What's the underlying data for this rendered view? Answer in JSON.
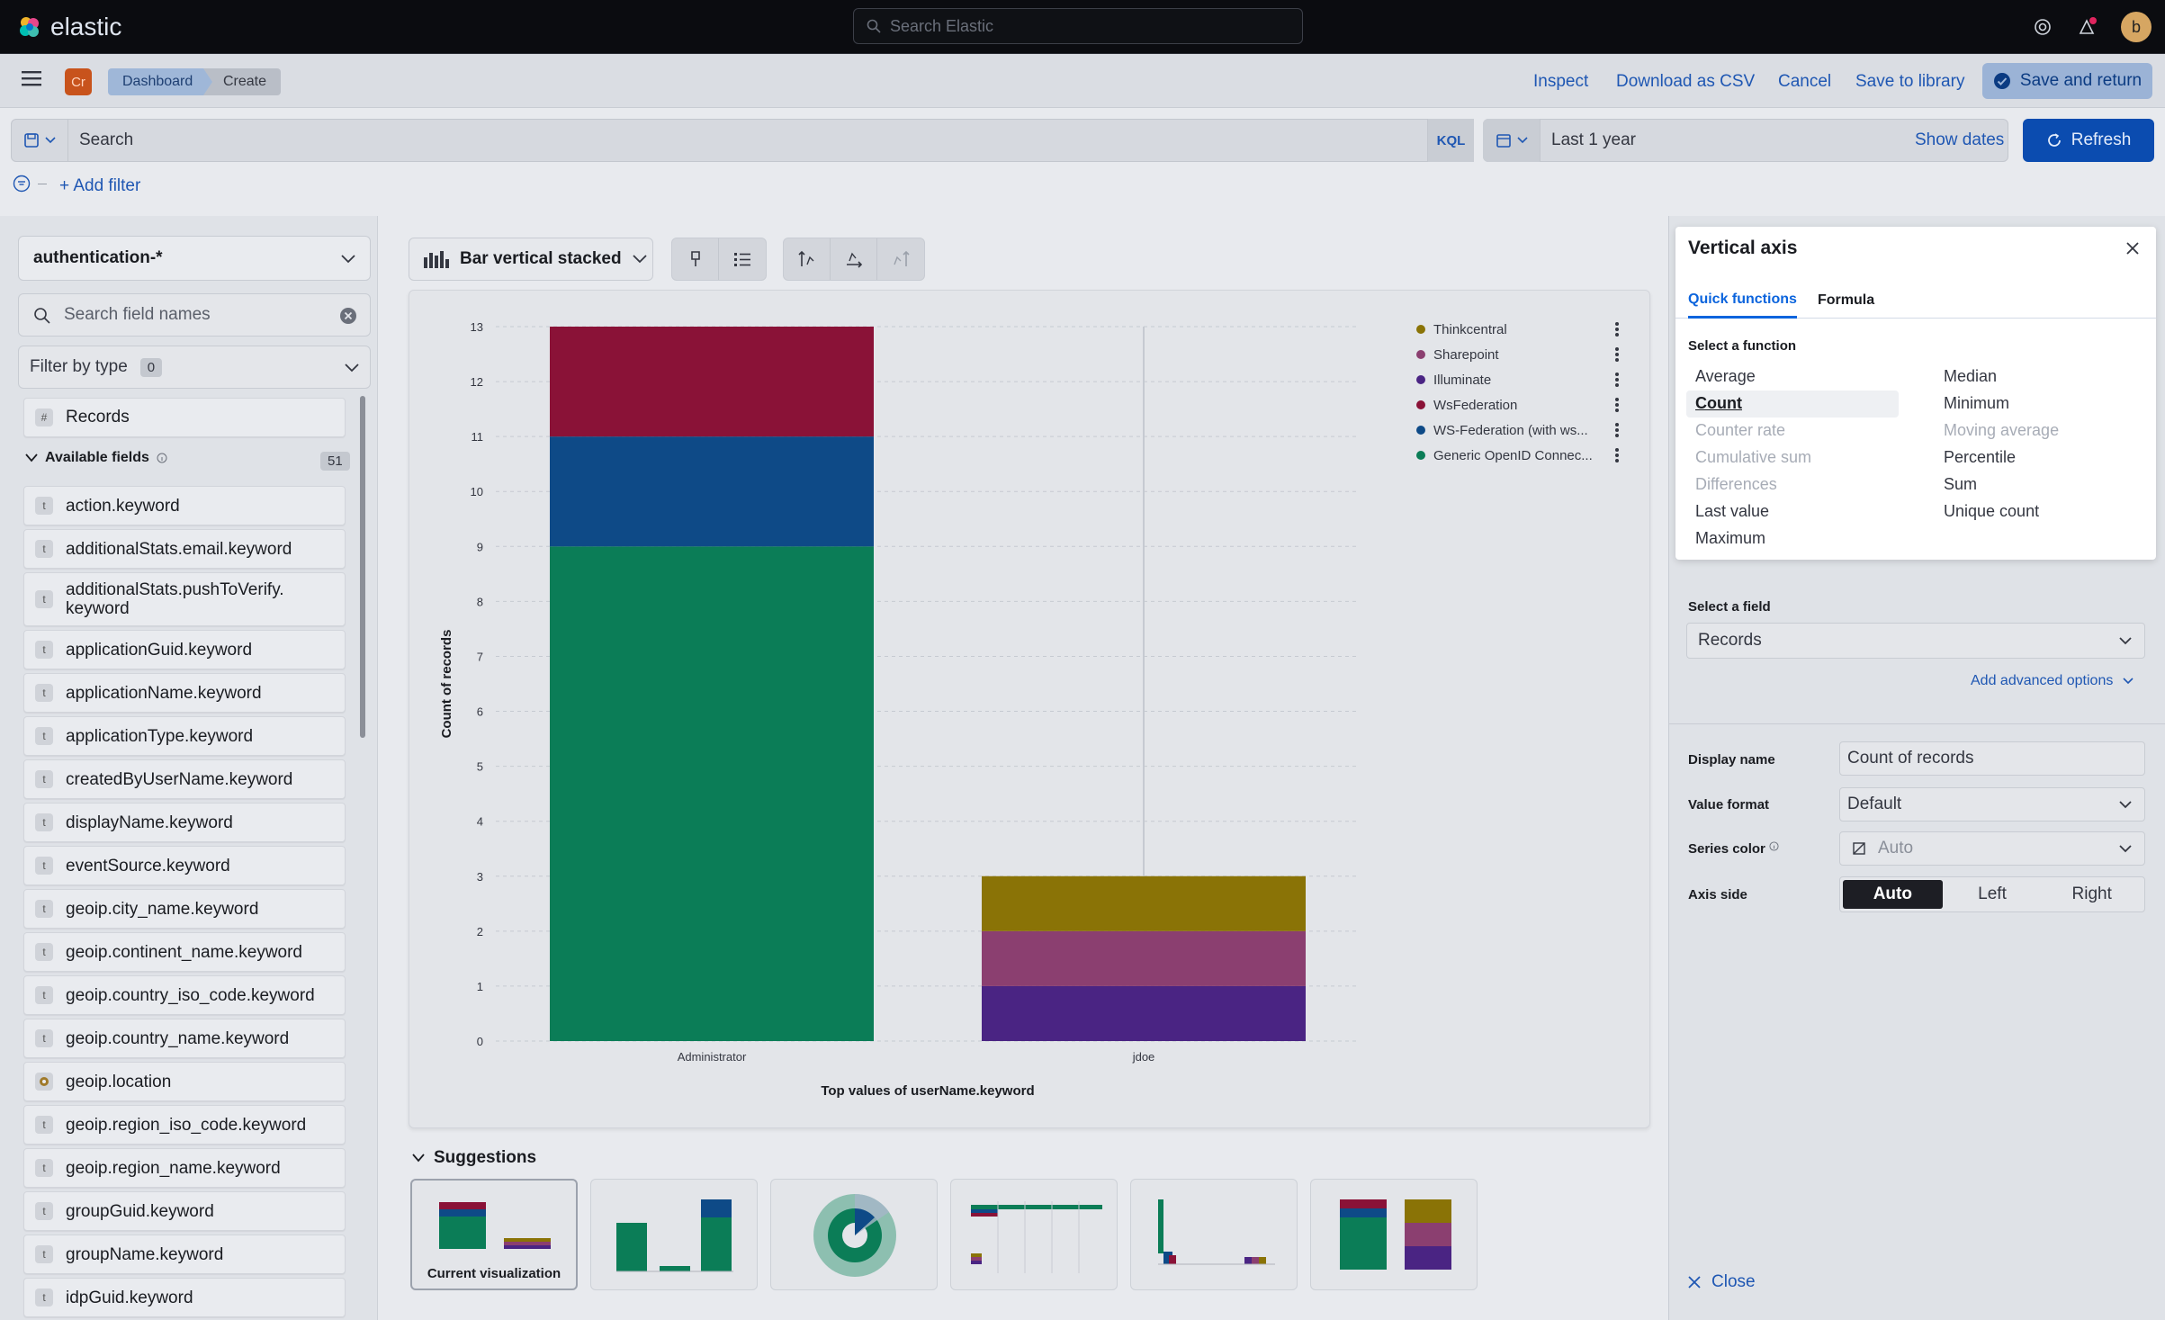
{
  "app": {
    "name": "elastic"
  },
  "global_search": {
    "placeholder": "Search Elastic"
  },
  "user": {
    "initial": "b"
  },
  "space": {
    "badge": "Cr"
  },
  "breadcrumbs": [
    "Dashboard",
    "Create"
  ],
  "top_actions": {
    "inspect": "Inspect",
    "download": "Download as CSV",
    "cancel": "Cancel",
    "save_to_library": "Save to library",
    "save_and_return": "Save and return"
  },
  "query": {
    "placeholder": "Search",
    "language": "KQL"
  },
  "date": {
    "range": "Last 1 year",
    "show_dates": "Show dates",
    "refresh": "Refresh"
  },
  "filters": {
    "add": "+ Add filter"
  },
  "left_panel": {
    "index_pattern": "authentication-*",
    "search_placeholder": "Search field names",
    "filter_by_type": "Filter by type",
    "filter_count": "0",
    "records": "Records",
    "available_label": "Available fields",
    "available_count": "51",
    "fields": [
      {
        "type": "t",
        "name": "action.keyword"
      },
      {
        "type": "t",
        "name": "additionalStats.email.keyword"
      },
      {
        "type": "t",
        "name": "additionalStats.pushToVerify.\nkeyword"
      },
      {
        "type": "t",
        "name": "applicationGuid.keyword"
      },
      {
        "type": "t",
        "name": "applicationName.keyword"
      },
      {
        "type": "t",
        "name": "applicationType.keyword"
      },
      {
        "type": "t",
        "name": "createdByUserName.keyword"
      },
      {
        "type": "t",
        "name": "displayName.keyword"
      },
      {
        "type": "t",
        "name": "eventSource.keyword"
      },
      {
        "type": "t",
        "name": "geoip.city_name.keyword"
      },
      {
        "type": "t",
        "name": "geoip.continent_name.keyword"
      },
      {
        "type": "t",
        "name": "geoip.country_iso_code.keyword"
      },
      {
        "type": "t",
        "name": "geoip.country_name.keyword"
      },
      {
        "type": "geo",
        "name": "geoip.location"
      },
      {
        "type": "t",
        "name": "geoip.region_iso_code.keyword"
      },
      {
        "type": "t",
        "name": "geoip.region_name.keyword"
      },
      {
        "type": "t",
        "name": "groupGuid.keyword"
      },
      {
        "type": "t",
        "name": "groupName.keyword"
      },
      {
        "type": "t",
        "name": "idpGuid.keyword"
      }
    ]
  },
  "workspace": {
    "vis_type": "Bar vertical stacked",
    "suggestions_label": "Suggestions",
    "current_visualization": "Current visualization"
  },
  "chart_data": {
    "type": "bar",
    "stacked": true,
    "categories": [
      "Administrator",
      "jdoe"
    ],
    "xlabel": "Top values of userName.keyword",
    "ylabel": "Count of records",
    "ylim": [
      0,
      13
    ],
    "yticks": [
      0,
      1,
      2,
      3,
      4,
      5,
      6,
      7,
      8,
      9,
      10,
      11,
      12,
      13
    ],
    "grid": true,
    "legend_position": "top-right",
    "series": [
      {
        "name": "Generic OpenID Connec...",
        "color": "#0b7d57",
        "values": [
          9,
          0
        ]
      },
      {
        "name": "WS-Federation (with ws...",
        "color": "#0e4a87",
        "values": [
          2,
          0
        ]
      },
      {
        "name": "WsFederation",
        "color": "#8a1237",
        "values": [
          2,
          0
        ]
      },
      {
        "name": "Illuminate",
        "color": "#4a2483",
        "values": [
          0,
          1
        ]
      },
      {
        "name": "Sharepoint",
        "color": "#8b3f70",
        "values": [
          0,
          1
        ]
      },
      {
        "name": "Thinkcentral",
        "color": "#8a7306",
        "values": [
          0,
          1
        ]
      }
    ],
    "legend_order": [
      "Thinkcentral",
      "Sharepoint",
      "Illuminate",
      "WsFederation",
      "WS-Federation (with ws...",
      "Generic OpenID Connec..."
    ]
  },
  "panel": {
    "title": "Vertical axis",
    "tabs": [
      "Quick functions",
      "Formula"
    ],
    "select_function_label": "Select a function",
    "functions_left": [
      {
        "label": "Average",
        "enabled": true
      },
      {
        "label": "Count",
        "enabled": true,
        "selected": true
      },
      {
        "label": "Counter rate",
        "enabled": false
      },
      {
        "label": "Cumulative sum",
        "enabled": false
      },
      {
        "label": "Differences",
        "enabled": false
      },
      {
        "label": "Last value",
        "enabled": true
      },
      {
        "label": "Maximum",
        "enabled": true
      }
    ],
    "functions_right": [
      {
        "label": "Median",
        "enabled": true
      },
      {
        "label": "Minimum",
        "enabled": true
      },
      {
        "label": "Moving average",
        "enabled": false
      },
      {
        "label": "Percentile",
        "enabled": true
      },
      {
        "label": "Sum",
        "enabled": true
      },
      {
        "label": "Unique count",
        "enabled": true
      }
    ],
    "select_field_label": "Select a field",
    "field_value": "Records",
    "advanced_options": "Add advanced options",
    "display_name_label": "Display name",
    "display_name_value": "Count of records",
    "value_format_label": "Value format",
    "value_format_value": "Default",
    "series_color_label": "Series color",
    "series_color_value": "Auto",
    "axis_side_label": "Axis side",
    "axis_side_options": [
      "Auto",
      "Left",
      "Right"
    ],
    "axis_side_selected": "Auto",
    "close": "Close"
  }
}
